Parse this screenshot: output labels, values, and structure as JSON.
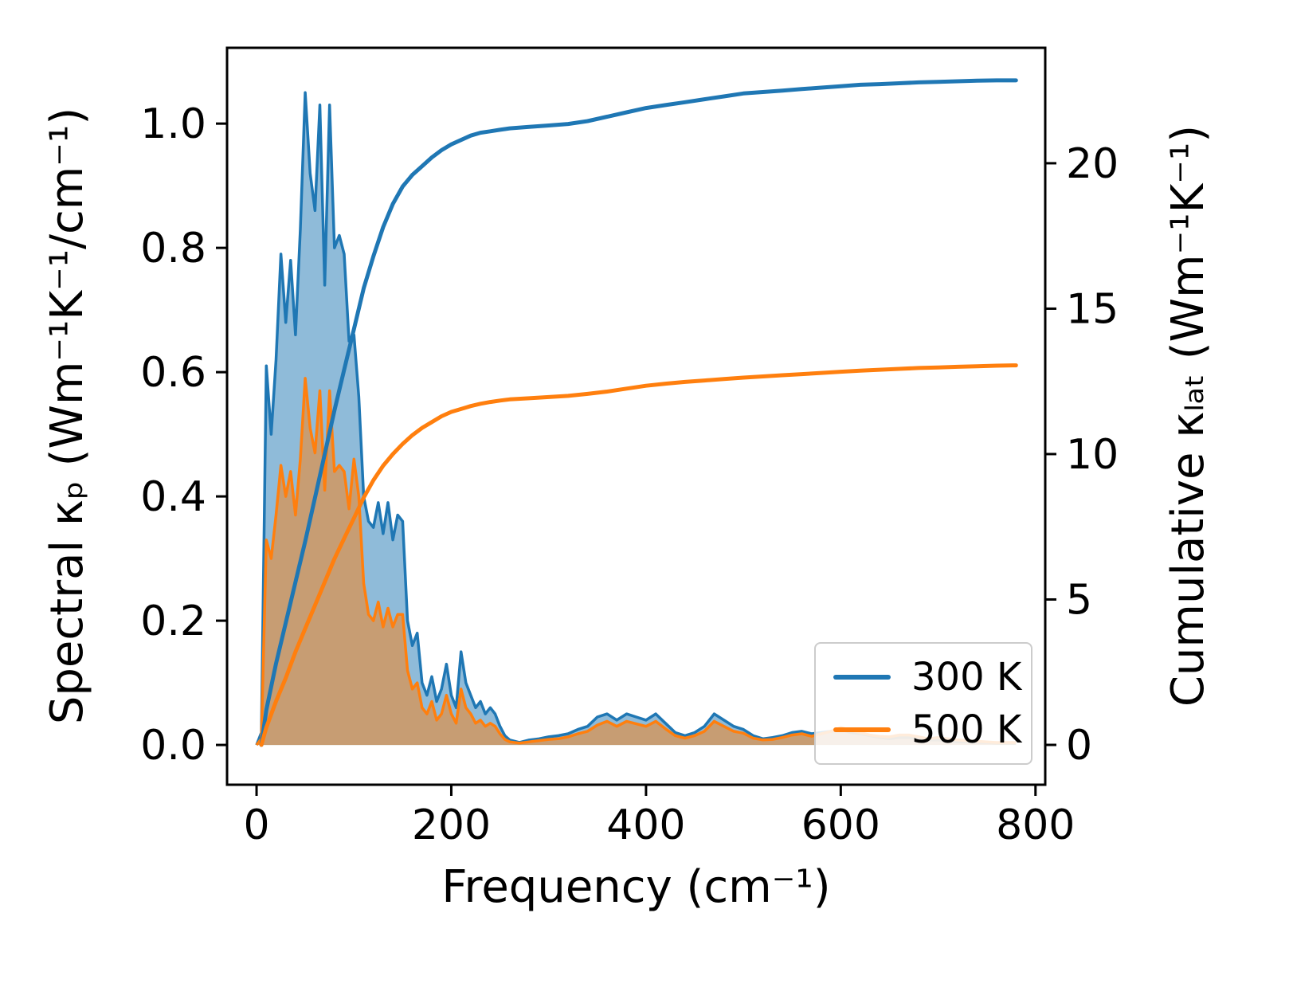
{
  "figure_title": "",
  "legend": {
    "position": "lower right",
    "items": [
      {
        "label": "300 K",
        "color": "#1f77b4"
      },
      {
        "label": "500 K",
        "color": "#ff7f0e"
      }
    ]
  },
  "chart_data": {
    "type": "line",
    "title": "",
    "xlabel": "Frequency (cm⁻¹)",
    "ylabel_left": "Spectral κₚ (Wm⁻¹K⁻¹/cm⁻¹)",
    "ylabel_right": "Cumulative κₗₐₜ (Wm⁻¹K⁻¹)",
    "grid": false,
    "xlim": [
      -30.3,
      810
    ],
    "ylim_left": [
      -0.064,
      1.122
    ],
    "ylim_right": [
      -1.37,
      23.97
    ],
    "fill_opacity": 0.5,
    "x_ticks": [
      {
        "v": 0,
        "label": "0"
      },
      {
        "v": 200,
        "label": "200"
      },
      {
        "v": 400,
        "label": "400"
      },
      {
        "v": 600,
        "label": "600"
      },
      {
        "v": 800,
        "label": "800"
      }
    ],
    "y_ticks_left": [
      {
        "v": 0.0,
        "label": "0.0"
      },
      {
        "v": 0.2,
        "label": "0.2"
      },
      {
        "v": 0.4,
        "label": "0.4"
      },
      {
        "v": 0.6,
        "label": "0.6"
      },
      {
        "v": 0.8,
        "label": "0.8"
      },
      {
        "v": 1.0,
        "label": "1.0"
      }
    ],
    "y_ticks_right": [
      {
        "v": 0,
        "label": "0"
      },
      {
        "v": 5,
        "label": "5"
      },
      {
        "v": 10,
        "label": "10"
      },
      {
        "v": 15,
        "label": "15"
      },
      {
        "v": 20,
        "label": "20"
      }
    ],
    "series": [
      {
        "name": "spectral-300K",
        "legend": "300 K",
        "axis": "left",
        "style": "area",
        "color": "#1f77b4",
        "x": [
          0,
          5,
          10,
          15,
          20,
          25,
          30,
          35,
          40,
          45,
          50,
          55,
          60,
          65,
          70,
          75,
          80,
          85,
          90,
          95,
          100,
          105,
          110,
          115,
          120,
          125,
          130,
          135,
          140,
          145,
          150,
          155,
          160,
          165,
          170,
          175,
          180,
          185,
          190,
          195,
          200,
          205,
          210,
          215,
          220,
          225,
          230,
          235,
          240,
          245,
          250,
          255,
          260,
          270,
          280,
          290,
          300,
          310,
          320,
          330,
          340,
          350,
          360,
          370,
          380,
          390,
          400,
          410,
          420,
          430,
          440,
          450,
          460,
          470,
          480,
          490,
          500,
          510,
          520,
          530,
          540,
          550,
          560,
          570,
          580,
          590,
          600,
          610,
          620,
          630,
          640,
          650,
          660,
          670,
          680,
          690,
          700,
          710,
          720,
          730,
          740,
          750,
          760,
          770,
          780
        ],
        "y": [
          0,
          0.02,
          0.61,
          0.5,
          0.62,
          0.79,
          0.68,
          0.78,
          0.66,
          0.83,
          1.05,
          0.92,
          0.86,
          1.03,
          0.74,
          1.03,
          0.8,
          0.82,
          0.79,
          0.65,
          0.66,
          0.56,
          0.4,
          0.36,
          0.35,
          0.39,
          0.34,
          0.39,
          0.33,
          0.37,
          0.36,
          0.2,
          0.16,
          0.18,
          0.1,
          0.08,
          0.11,
          0.07,
          0.09,
          0.13,
          0.08,
          0.06,
          0.15,
          0.1,
          0.08,
          0.06,
          0.07,
          0.05,
          0.06,
          0.05,
          0.03,
          0.015,
          0.008,
          0.004,
          0.008,
          0.01,
          0.013,
          0.015,
          0.018,
          0.025,
          0.03,
          0.045,
          0.05,
          0.04,
          0.05,
          0.045,
          0.04,
          0.05,
          0.035,
          0.02,
          0.015,
          0.02,
          0.03,
          0.05,
          0.04,
          0.03,
          0.025,
          0.015,
          0.01,
          0.012,
          0.015,
          0.02,
          0.022,
          0.018,
          0.02,
          0.022,
          0.025,
          0.02,
          0.018,
          0.015,
          0.012,
          0.01,
          0.012,
          0.012,
          0.01,
          0.008,
          0.008,
          0.006,
          0.005,
          0.005,
          0.004,
          0.004,
          0.003,
          0.003,
          0.003
        ]
      },
      {
        "name": "spectral-500K",
        "legend": "500 K",
        "axis": "left",
        "style": "area",
        "color": "#ff7f0e",
        "x": [
          0,
          5,
          10,
          15,
          20,
          25,
          30,
          35,
          40,
          45,
          50,
          55,
          60,
          65,
          70,
          75,
          80,
          85,
          90,
          95,
          100,
          105,
          110,
          115,
          120,
          125,
          130,
          135,
          140,
          145,
          150,
          155,
          160,
          165,
          170,
          175,
          180,
          185,
          190,
          195,
          200,
          205,
          210,
          215,
          220,
          225,
          230,
          235,
          240,
          245,
          250,
          255,
          260,
          270,
          280,
          290,
          300,
          310,
          320,
          330,
          340,
          350,
          360,
          370,
          380,
          390,
          400,
          410,
          420,
          430,
          440,
          450,
          460,
          470,
          480,
          490,
          500,
          510,
          520,
          530,
          540,
          550,
          560,
          570,
          580,
          590,
          600,
          610,
          620,
          630,
          640,
          650,
          660,
          670,
          680,
          690,
          700,
          710,
          720,
          730,
          740,
          750,
          760,
          770,
          780
        ],
        "y": [
          0,
          0.01,
          0.33,
          0.3,
          0.37,
          0.45,
          0.4,
          0.44,
          0.37,
          0.46,
          0.59,
          0.51,
          0.47,
          0.57,
          0.41,
          0.57,
          0.44,
          0.45,
          0.44,
          0.38,
          0.46,
          0.4,
          0.26,
          0.21,
          0.2,
          0.23,
          0.19,
          0.22,
          0.19,
          0.21,
          0.21,
          0.12,
          0.09,
          0.1,
          0.06,
          0.05,
          0.07,
          0.04,
          0.05,
          0.08,
          0.05,
          0.035,
          0.09,
          0.06,
          0.05,
          0.035,
          0.04,
          0.03,
          0.035,
          0.03,
          0.018,
          0.009,
          0.005,
          0.003,
          0.005,
          0.007,
          0.009,
          0.01,
          0.013,
          0.018,
          0.022,
          0.032,
          0.038,
          0.03,
          0.038,
          0.034,
          0.03,
          0.038,
          0.026,
          0.015,
          0.011,
          0.015,
          0.022,
          0.038,
          0.03,
          0.022,
          0.019,
          0.011,
          0.008,
          0.009,
          0.012,
          0.016,
          0.018,
          0.014,
          0.018,
          0.022,
          0.028,
          0.024,
          0.02,
          0.016,
          0.014,
          0.013,
          0.016,
          0.016,
          0.013,
          0.01,
          0.012,
          0.01,
          0.008,
          0.007,
          0.006,
          0.005,
          0.004,
          0.004,
          0.004
        ]
      },
      {
        "name": "cumulative-300K",
        "legend": "300 K",
        "axis": "right",
        "style": "line",
        "color": "#1f77b4",
        "x": [
          5,
          10,
          20,
          30,
          40,
          50,
          60,
          70,
          80,
          90,
          100,
          110,
          120,
          130,
          140,
          150,
          160,
          170,
          180,
          190,
          200,
          210,
          220,
          230,
          240,
          250,
          260,
          280,
          300,
          320,
          340,
          360,
          380,
          400,
          420,
          440,
          460,
          480,
          500,
          520,
          540,
          560,
          580,
          600,
          620,
          640,
          660,
          680,
          700,
          720,
          740,
          760,
          780
        ],
        "y": [
          0,
          1.2,
          2.8,
          4.2,
          5.6,
          7.0,
          8.5,
          10.0,
          11.5,
          12.9,
          14.3,
          15.7,
          16.8,
          17.8,
          18.6,
          19.2,
          19.6,
          19.9,
          20.2,
          20.45,
          20.65,
          20.8,
          20.95,
          21.05,
          21.1,
          21.15,
          21.2,
          21.25,
          21.3,
          21.35,
          21.45,
          21.6,
          21.75,
          21.9,
          22.0,
          22.1,
          22.2,
          22.3,
          22.4,
          22.45,
          22.5,
          22.55,
          22.6,
          22.65,
          22.7,
          22.72,
          22.75,
          22.78,
          22.8,
          22.82,
          22.84,
          22.85,
          22.85
        ]
      },
      {
        "name": "cumulative-500K",
        "legend": "500 K",
        "axis": "right",
        "style": "line",
        "color": "#ff7f0e",
        "x": [
          5,
          10,
          20,
          30,
          40,
          50,
          60,
          70,
          80,
          90,
          100,
          110,
          120,
          130,
          140,
          150,
          160,
          170,
          180,
          190,
          200,
          210,
          220,
          230,
          240,
          250,
          260,
          280,
          300,
          320,
          340,
          360,
          380,
          400,
          420,
          440,
          460,
          480,
          500,
          520,
          540,
          560,
          580,
          600,
          620,
          640,
          660,
          680,
          700,
          720,
          740,
          760,
          780
        ],
        "y": [
          0,
          0.6,
          1.5,
          2.3,
          3.2,
          4.0,
          4.8,
          5.6,
          6.4,
          7.1,
          7.8,
          8.5,
          9.1,
          9.6,
          10.0,
          10.35,
          10.65,
          10.9,
          11.1,
          11.3,
          11.45,
          11.55,
          11.65,
          11.73,
          11.79,
          11.84,
          11.88,
          11.92,
          11.96,
          12.0,
          12.07,
          12.15,
          12.25,
          12.35,
          12.42,
          12.48,
          12.53,
          12.58,
          12.63,
          12.67,
          12.71,
          12.75,
          12.79,
          12.83,
          12.87,
          12.9,
          12.93,
          12.96,
          12.98,
          13.0,
          13.02,
          13.04,
          13.05
        ]
      }
    ]
  }
}
